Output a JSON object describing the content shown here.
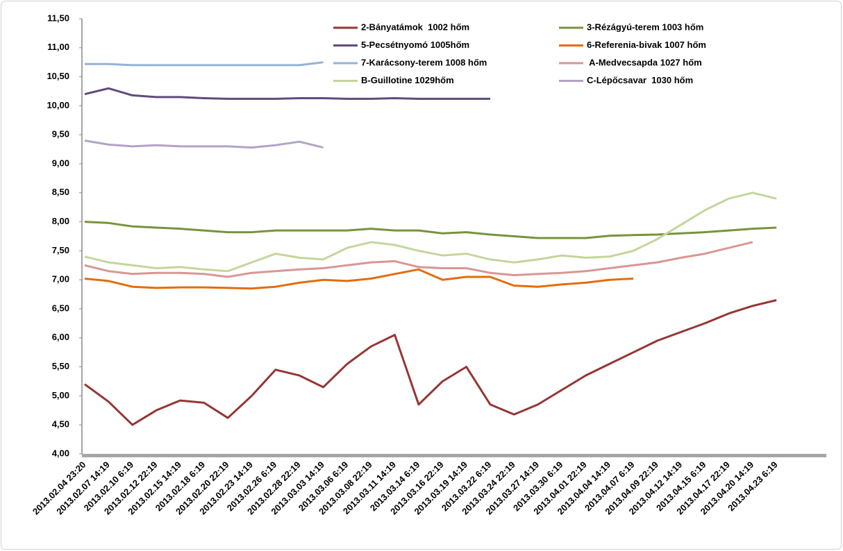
{
  "chart_data": {
    "type": "line",
    "categories": [
      "2013.02.04 23:20",
      "2013.02.07 14:19",
      "2013.02.10 6:19",
      "2013.02.12 22:19",
      "2013.02.15 14:19",
      "2013.02.18 6:19",
      "2013.02.20 22:19",
      "2013.02.23 14:19",
      "2013.02.26 6:19",
      "2013.02.28 22:19",
      "2013.03.03 14:19",
      "2013.03.06 6:19",
      "2013.03.08 22:19",
      "2013.03.11 14:19",
      "2013.03.14 6:19",
      "2013.03.16 22:19",
      "2013.03.19 14:19",
      "2013.03.22 6:19",
      "2013.03.24 22:19",
      "2013.03.27 14:19",
      "2013.03.30 6:19",
      "2013.04.01 22:19",
      "2013.04.04 14:19",
      "2013.04.07 6:19",
      "2013.04.09 22:19",
      "2013.04.12 14:19",
      "2013.04.15 6:19",
      "2013.04.17 22:19",
      "2013.04.20 14:19",
      "2013.04.23 6:19"
    ],
    "ylim": [
      4,
      11.5
    ],
    "yticks": [
      {
        "value": 4,
        "label": "4,00"
      },
      {
        "value": 4.5,
        "label": "4,50"
      },
      {
        "value": 5,
        "label": "5,00"
      },
      {
        "value": 5.5,
        "label": "5,50"
      },
      {
        "value": 6,
        "label": "6,00"
      },
      {
        "value": 6.5,
        "label": "6,50"
      },
      {
        "value": 7,
        "label": "7,00"
      },
      {
        "value": 7.5,
        "label": "7,50"
      },
      {
        "value": 8,
        "label": "8,00"
      },
      {
        "value": 8.5,
        "label": "8,50"
      },
      {
        "value": 9,
        "label": "9,00"
      },
      {
        "value": 9.5,
        "label": "9,50"
      },
      {
        "value": 10,
        "label": "10,00"
      },
      {
        "value": 10.5,
        "label": "10,50"
      },
      {
        "value": 11,
        "label": "11,00"
      },
      {
        "value": 11.5,
        "label": "11,50"
      }
    ],
    "grid": false,
    "legend": "top-right",
    "series": [
      {
        "name": "2-Bányatámok  1002 hőm",
        "color": "#943634",
        "values": [
          5.2,
          4.9,
          4.5,
          4.75,
          4.92,
          4.88,
          4.62,
          5.0,
          5.45,
          5.35,
          5.15,
          5.55,
          5.85,
          6.05,
          4.85,
          5.25,
          5.5,
          4.85,
          4.68,
          4.85,
          5.1,
          5.35,
          5.55,
          5.75,
          5.95,
          6.1,
          6.25,
          6.42,
          6.55,
          6.65
        ]
      },
      {
        "name": "3-Rézágyú-terem 1003 hőm",
        "color": "#77933c",
        "values": [
          8.0,
          7.98,
          7.92,
          7.9,
          7.88,
          7.85,
          7.82,
          7.82,
          7.85,
          7.85,
          7.85,
          7.85,
          7.88,
          7.85,
          7.85,
          7.8,
          7.82,
          7.78,
          7.75,
          7.72,
          7.72,
          7.72,
          7.76,
          7.77,
          7.78,
          7.8,
          7.82,
          7.85,
          7.88,
          7.9
        ]
      },
      {
        "name": "5-Pecsétnyomó 1005hőm",
        "color": "#604a7b",
        "values": [
          10.2,
          10.3,
          10.18,
          10.15,
          10.15,
          10.13,
          10.12,
          10.12,
          10.12,
          10.13,
          10.13,
          10.12,
          10.12,
          10.13,
          10.12,
          10.12,
          10.12,
          10.12,
          null,
          null,
          null,
          null,
          null,
          null,
          null,
          null,
          null,
          null,
          null,
          null
        ]
      },
      {
        "name": "6-Referenia-bivak 1007 hőm",
        "color": "#e46c0a",
        "values": [
          7.02,
          6.98,
          6.88,
          6.86,
          6.87,
          6.87,
          6.86,
          6.85,
          6.88,
          6.95,
          7.0,
          6.98,
          7.02,
          7.1,
          7.18,
          7.0,
          7.05,
          7.05,
          6.9,
          6.88,
          6.92,
          6.95,
          7.0,
          7.02,
          null,
          null,
          null,
          null,
          null,
          null
        ]
      },
      {
        "name": "7-Karácsony-terem 1008 hőm",
        "color": "#95b3d7",
        "values": [
          10.72,
          10.72,
          10.7,
          10.7,
          10.7,
          10.7,
          10.7,
          10.7,
          10.7,
          10.7,
          10.75,
          null,
          null,
          null,
          null,
          null,
          null,
          null,
          null,
          null,
          null,
          null,
          null,
          null,
          null,
          null,
          null,
          null,
          null,
          null
        ]
      },
      {
        "name": " A-Medvecsapda 1027 hőm",
        "color": "#d99694",
        "values": [
          7.25,
          7.15,
          7.1,
          7.12,
          7.12,
          7.1,
          7.05,
          7.12,
          7.15,
          7.18,
          7.2,
          7.25,
          7.3,
          7.32,
          7.22,
          7.2,
          7.2,
          7.12,
          7.08,
          7.1,
          7.12,
          7.15,
          7.2,
          7.25,
          7.3,
          7.38,
          7.45,
          7.55,
          7.65,
          null
        ]
      },
      {
        "name": "B-Guillotine 1029hőm",
        "color": "#c3d69b",
        "values": [
          7.4,
          7.3,
          7.25,
          7.2,
          7.22,
          7.18,
          7.15,
          7.3,
          7.45,
          7.38,
          7.35,
          7.55,
          7.65,
          7.6,
          7.5,
          7.42,
          7.45,
          7.35,
          7.3,
          7.35,
          7.42,
          7.38,
          7.4,
          7.5,
          7.7,
          7.95,
          8.2,
          8.4,
          8.5,
          8.4
        ]
      },
      {
        "name": "C-Lépőcsavar  1030 hőm",
        "color": "#b3a2c7",
        "values": [
          9.4,
          9.33,
          9.3,
          9.32,
          9.3,
          9.3,
          9.3,
          9.28,
          9.32,
          9.38,
          9.28,
          null,
          null,
          null,
          null,
          null,
          null,
          null,
          null,
          null,
          null,
          null,
          null,
          null,
          null,
          null,
          null,
          null,
          null,
          null
        ]
      }
    ]
  }
}
